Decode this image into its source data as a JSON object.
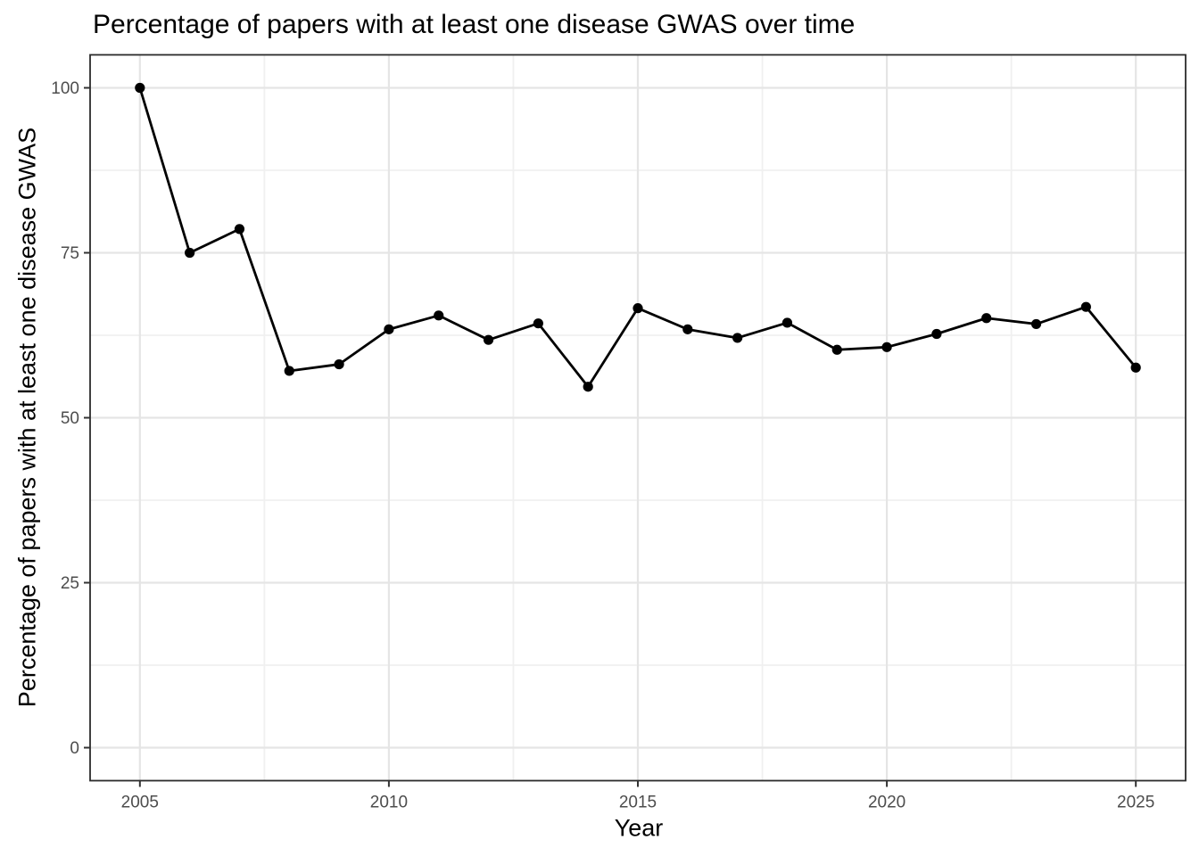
{
  "title": "Percentage of papers with at least one disease GWAS over time",
  "chart_data": {
    "type": "line",
    "title": "Percentage of papers with at least one disease GWAS over time",
    "xlabel": "Year",
    "ylabel": "Percentage of papers with at least one disease GWAS",
    "x": [
      2005,
      2006,
      2007,
      2008,
      2009,
      2010,
      2011,
      2012,
      2013,
      2014,
      2015,
      2016,
      2017,
      2018,
      2019,
      2020,
      2021,
      2022,
      2023,
      2024,
      2025
    ],
    "values": [
      100,
      75,
      78.6,
      57.1,
      58.1,
      63.4,
      65.5,
      61.8,
      64.3,
      54.7,
      66.6,
      63.4,
      62.1,
      64.4,
      60.3,
      60.7,
      62.7,
      65.1,
      64.2,
      66.8,
      57.6
    ],
    "series_name": "Percentage of papers with at least one disease GWAS",
    "xlim": [
      2004,
      2026
    ],
    "ylim": [
      -5,
      105
    ],
    "x_ticks": [
      2005,
      2010,
      2015,
      2020,
      2025
    ],
    "y_ticks": [
      0,
      25,
      50,
      75,
      100
    ],
    "x_minor_gridlines": [
      2007.5,
      2012.5,
      2017.5,
      2022.5
    ],
    "y_minor_gridlines": [
      12.5,
      37.5,
      62.5,
      87.5
    ],
    "grid": true,
    "legend": false
  },
  "colors": {
    "background": "#FFFFFF",
    "panel_background": "#FFFFFF",
    "panel_border": "#2B2B2B",
    "grid_major": "#E5E5E5",
    "grid_minor": "#F0F0F0",
    "tick_mark": "#333333",
    "tick_label": "#4D4D4D",
    "line": "#000000",
    "point": "#000000",
    "title_text": "#000000"
  }
}
